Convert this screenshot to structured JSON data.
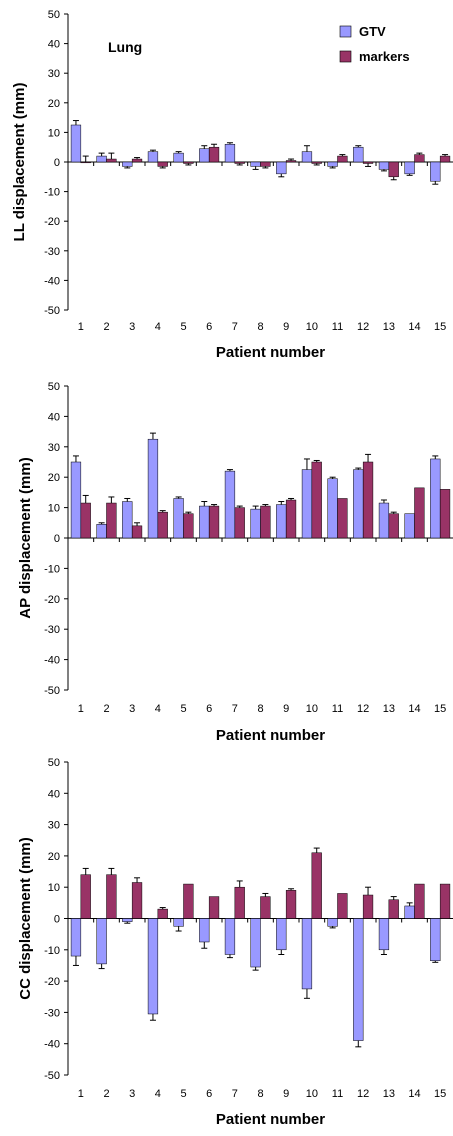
{
  "colors": {
    "gtv": "#9999ff",
    "markers": "#993366",
    "axis": "#000000",
    "errorbar": "#000000"
  },
  "chart_data": [
    {
      "type": "bar",
      "title": "",
      "annotation": "Lung",
      "xlabel": "Patient number",
      "ylabel": "LL displacement (mm)",
      "ylim": [
        -50,
        50
      ],
      "ytick_step": 10,
      "grid": false,
      "legend": "top-right",
      "categories": [
        "1",
        "2",
        "3",
        "4",
        "5",
        "6",
        "7",
        "8",
        "9",
        "10",
        "11",
        "12",
        "13",
        "14",
        "15"
      ],
      "series": [
        {
          "name": "GTV",
          "values": [
            12.5,
            2,
            -1.5,
            3.5,
            3,
            4.5,
            6,
            -1.5,
            -4,
            3.5,
            -1.5,
            5,
            -2.5,
            -4,
            -6.5
          ],
          "errors": [
            1.5,
            1,
            0.5,
            0.5,
            0.5,
            1,
            0.5,
            1,
            1,
            2,
            0.5,
            0.5,
            0.5,
            0.5,
            1
          ]
        },
        {
          "name": "markers",
          "values": [
            0,
            1,
            1,
            -1.5,
            -0.5,
            5,
            -0.5,
            -1.5,
            0.5,
            -0.5,
            2,
            -0.5,
            -5,
            2.5,
            2
          ],
          "errors": [
            2,
            2,
            0.5,
            0.5,
            0.5,
            1,
            0.5,
            0.5,
            0.5,
            0.5,
            0.5,
            1,
            1,
            0.5,
            0.5
          ]
        }
      ]
    },
    {
      "type": "bar",
      "title": "",
      "annotation": "",
      "xlabel": "Patient number",
      "ylabel": "AP displacement (mm)",
      "ylim": [
        -50,
        50
      ],
      "ytick_step": 10,
      "grid": false,
      "legend": "none",
      "categories": [
        "1",
        "2",
        "3",
        "4",
        "5",
        "6",
        "7",
        "8",
        "9",
        "10",
        "11",
        "12",
        "13",
        "14",
        "15"
      ],
      "series": [
        {
          "name": "GTV",
          "values": [
            25,
            4.5,
            12,
            32.5,
            13,
            10.5,
            22,
            9.5,
            11,
            22.5,
            19.5,
            22.5,
            11.5,
            8,
            26
          ],
          "errors": [
            2,
            0.5,
            1,
            2,
            0.5,
            1.5,
            0.5,
            1,
            1,
            3.5,
            0.5,
            0.5,
            1,
            0,
            1
          ]
        },
        {
          "name": "markers",
          "values": [
            11.5,
            11.5,
            4,
            8.5,
            8,
            10.5,
            10,
            10.5,
            12.5,
            25,
            13,
            25,
            8,
            16.5,
            16
          ],
          "errors": [
            2.5,
            2,
            1,
            0.5,
            0.5,
            0.5,
            0.5,
            0.5,
            0.5,
            0.5,
            0,
            2.5,
            0.5,
            0,
            0
          ]
        }
      ]
    },
    {
      "type": "bar",
      "title": "",
      "annotation": "",
      "xlabel": "Patient number",
      "ylabel": "CC displacement (mm)",
      "ylim": [
        -50,
        50
      ],
      "ytick_step": 10,
      "grid": false,
      "legend": "none",
      "categories": [
        "1",
        "2",
        "3",
        "4",
        "5",
        "6",
        "7",
        "8",
        "9",
        "10",
        "11",
        "12",
        "13",
        "14",
        "15"
      ],
      "series": [
        {
          "name": "GTV",
          "values": [
            -12,
            -14.5,
            -1,
            -30.5,
            -2.5,
            -7.5,
            -11.5,
            -15.5,
            -10,
            -22.5,
            -2.5,
            -39,
            -10,
            4,
            -13.5
          ],
          "errors": [
            3,
            1.5,
            0.5,
            2,
            1.5,
            2,
            1,
            1,
            1.5,
            3,
            0.5,
            2,
            1.5,
            1,
            0.5
          ]
        },
        {
          "name": "markers",
          "values": [
            14,
            14,
            11.5,
            3,
            11,
            7,
            10,
            7,
            9,
            21,
            8,
            7.5,
            6,
            11,
            11
          ],
          "errors": [
            2,
            2,
            1.5,
            0.5,
            0,
            0,
            2,
            1,
            0.5,
            1.5,
            0,
            2.5,
            1,
            0,
            0
          ]
        }
      ]
    }
  ]
}
